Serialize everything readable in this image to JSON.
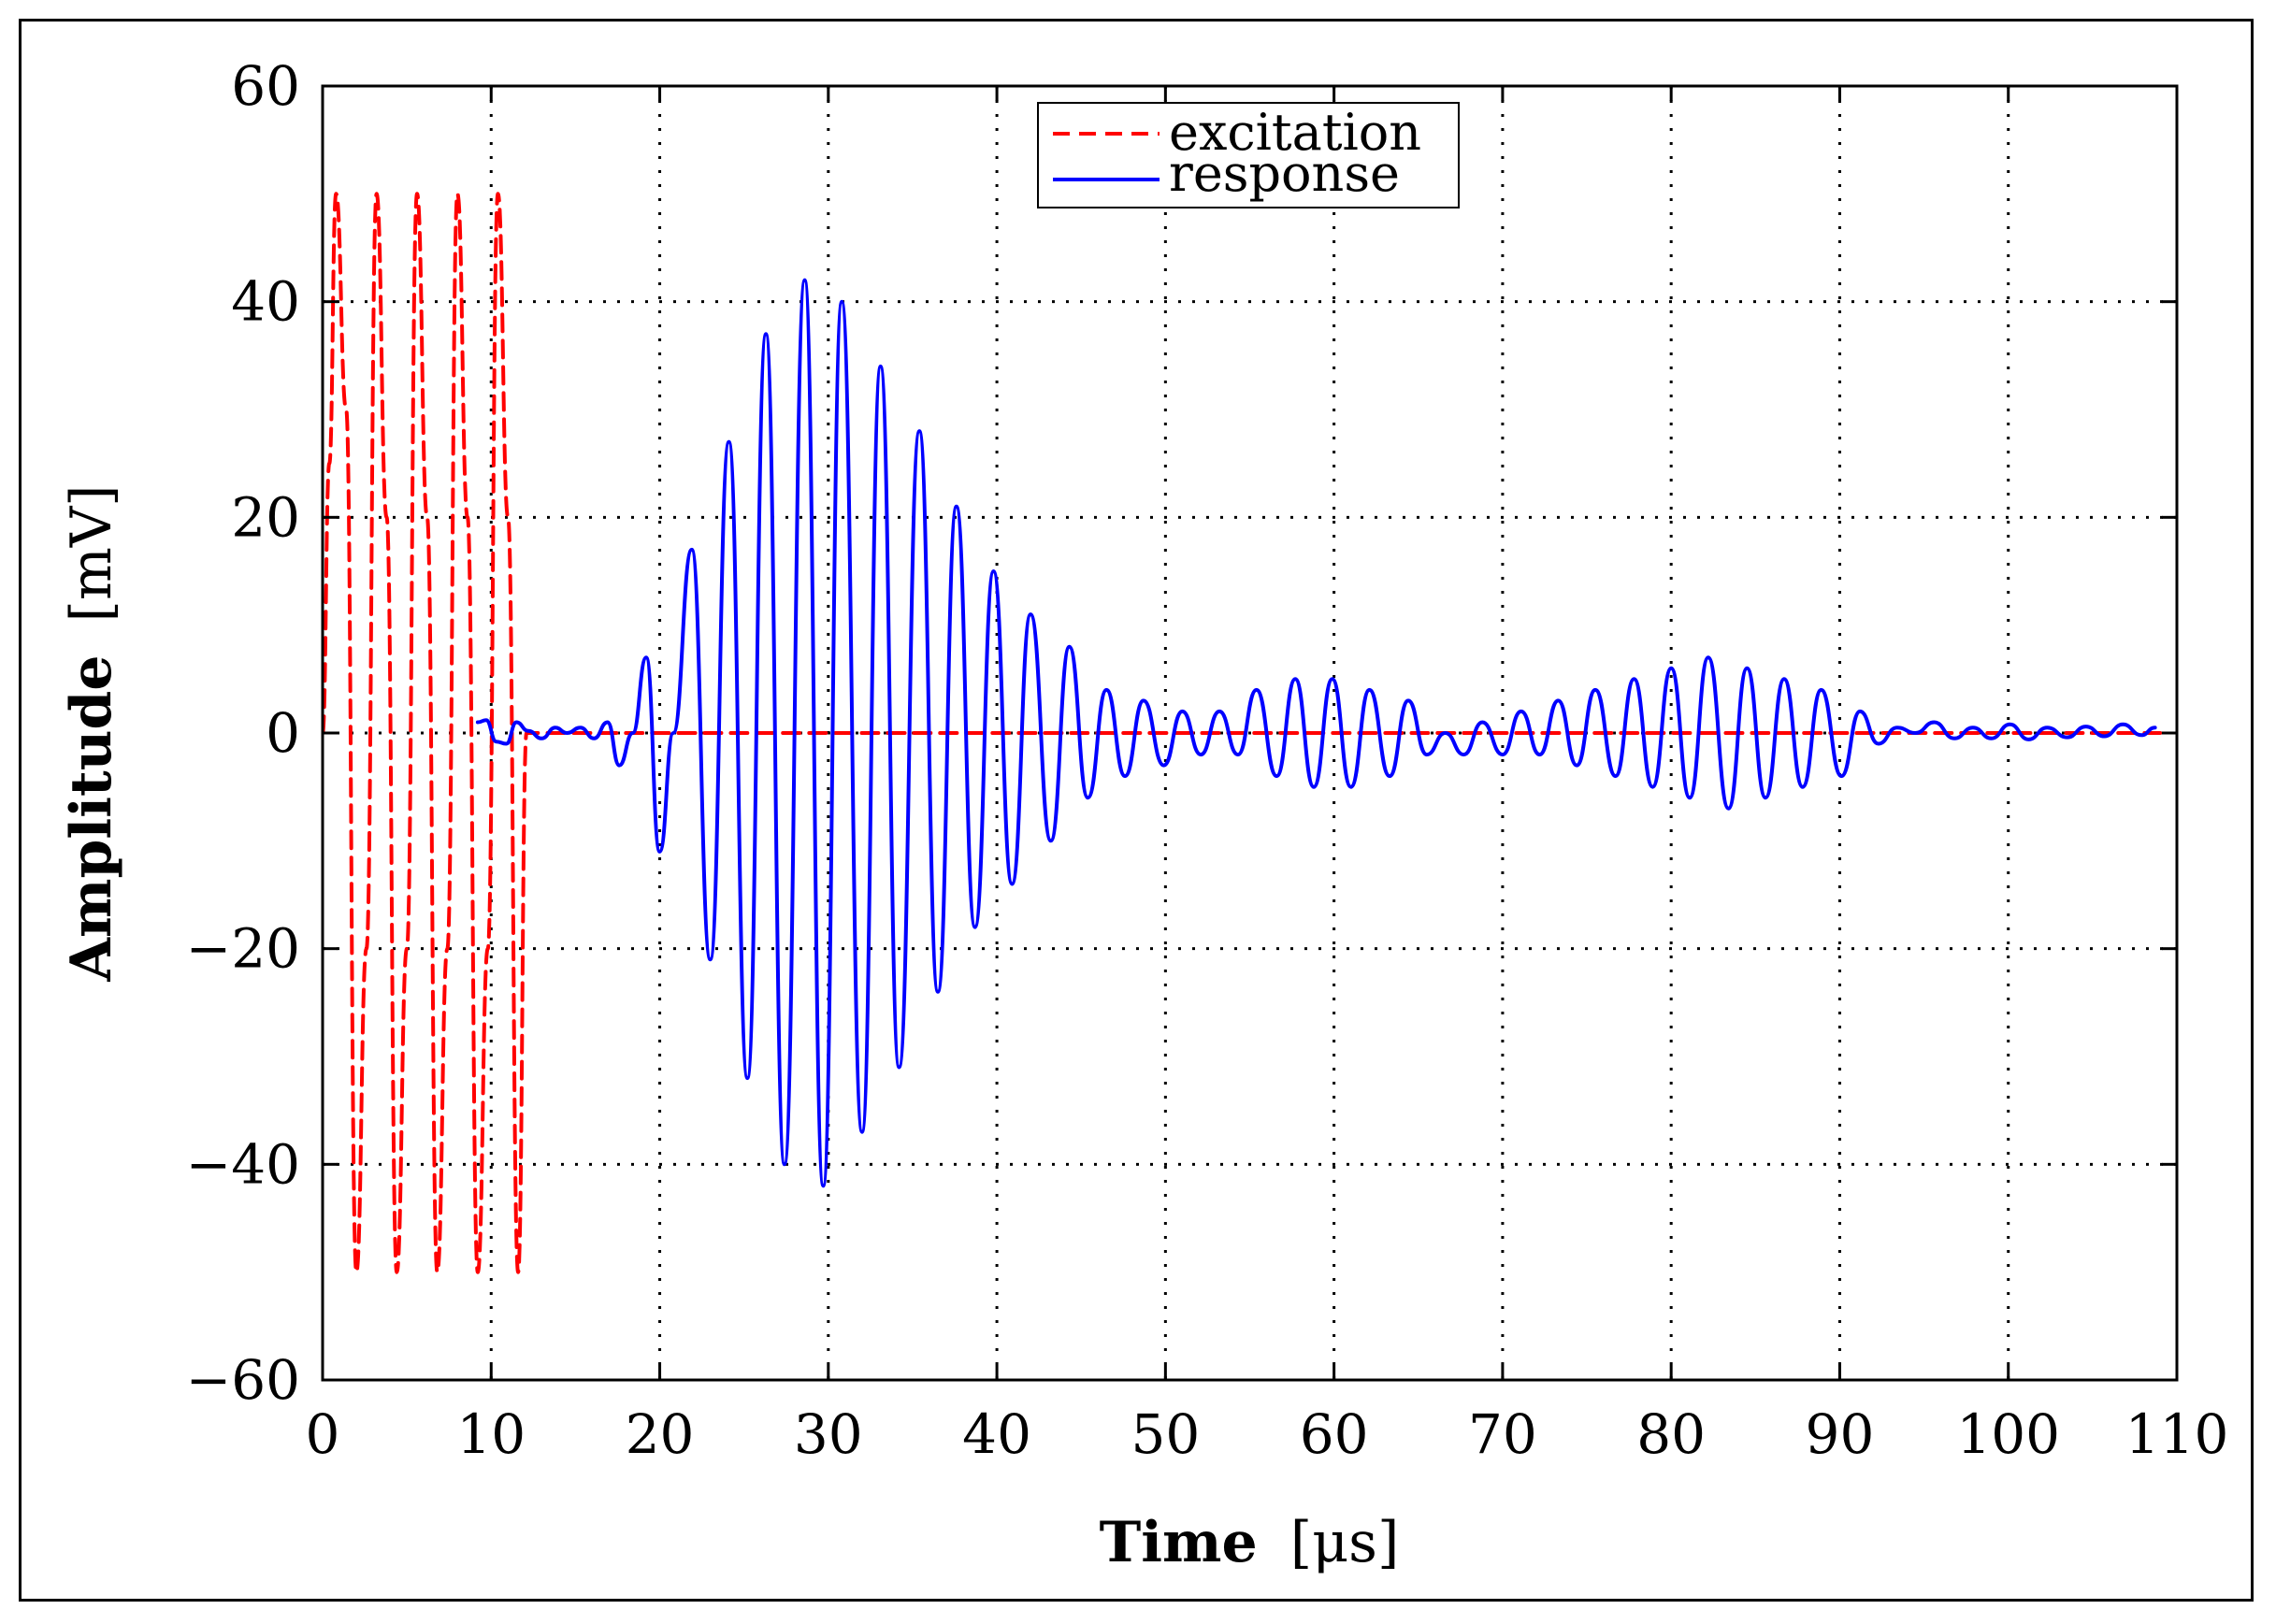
{
  "chart_data": {
    "type": "line",
    "title": "",
    "xlabel": {
      "main": "Time",
      "unit": "[μs]"
    },
    "ylabel": {
      "main": "Amplitude",
      "unit": "[mV]"
    },
    "xlim": [
      0,
      110
    ],
    "ylim": [
      -60,
      60
    ],
    "xticks": [
      0,
      10,
      20,
      30,
      40,
      50,
      60,
      70,
      80,
      90,
      100,
      110
    ],
    "yticks": [
      -60,
      -40,
      -20,
      0,
      20,
      40,
      60
    ],
    "ytick_labels": [
      "−60",
      "−40",
      "−20",
      "0",
      "20",
      "40",
      "60"
    ],
    "grid": "dotted",
    "legend_position": "top-center",
    "series": [
      {
        "name": "excitation",
        "style": "dashed",
        "color": "#ff0000",
        "x": [
          0.0,
          0.4,
          0.8,
          1.4,
          2.0,
          2.6,
          3.2,
          3.8,
          4.4,
          5.0,
          5.6,
          6.2,
          6.8,
          7.4,
          8.0,
          8.6,
          9.2,
          9.8,
          10.4,
          11.0,
          11.6,
          12.1,
          13.0,
          20.0,
          30.0,
          40.0,
          50.0,
          60.0,
          70.0,
          80.0,
          90.0,
          100.0,
          109.0
        ],
        "values": [
          0,
          25,
          50,
          30,
          -50,
          -20,
          50,
          20,
          -50,
          -20,
          50,
          20,
          -50,
          -20,
          50,
          20,
          -50,
          -20,
          50,
          20,
          -50,
          0,
          0,
          0,
          0,
          0,
          0,
          0,
          0,
          0,
          0,
          0,
          0
        ]
      },
      {
        "name": "response",
        "style": "solid",
        "color": "#0000ff",
        "x": [
          9.2,
          9.7,
          10.3,
          10.9,
          11.5,
          12.2,
          13.0,
          13.8,
          14.5,
          15.3,
          16.1,
          16.9,
          17.6,
          18.4,
          19.2,
          20.0,
          20.8,
          21.9,
          23.0,
          24.1,
          25.2,
          26.3,
          27.4,
          28.6,
          29.7,
          30.8,
          32.0,
          33.1,
          34.2,
          35.4,
          36.5,
          37.6,
          38.7,
          39.8,
          40.9,
          42.0,
          43.2,
          44.3,
          45.4,
          46.5,
          47.6,
          48.7,
          49.9,
          51.0,
          52.1,
          53.2,
          54.3,
          55.4,
          56.6,
          57.7,
          58.8,
          59.9,
          61.0,
          62.1,
          63.3,
          64.4,
          65.5,
          66.6,
          67.7,
          68.8,
          70.0,
          71.1,
          72.2,
          73.3,
          74.4,
          75.5,
          76.7,
          77.8,
          78.9,
          80.0,
          81.1,
          82.2,
          83.4,
          84.5,
          85.6,
          86.7,
          87.8,
          88.9,
          90.1,
          91.2,
          92.3,
          93.4,
          94.5,
          95.6,
          96.8,
          97.9,
          99.0,
          100.1,
          101.2,
          102.3,
          103.5,
          104.6,
          105.7,
          106.8,
          107.9,
          108.7
        ],
        "values": [
          1,
          1.2,
          -0.8,
          -1,
          1.0,
          0.2,
          -0.5,
          0.5,
          0,
          0.5,
          -0.5,
          1,
          -3,
          0,
          7,
          -11,
          0,
          17,
          -21,
          27,
          -32,
          37,
          -40,
          42,
          -42,
          40,
          -37,
          34,
          -31,
          28,
          -24,
          21,
          -18,
          15,
          -14,
          11,
          -10,
          8,
          -6,
          4,
          -4,
          3,
          -3,
          2,
          -2,
          2,
          -2,
          4,
          -4,
          5,
          -5,
          5,
          -5,
          4,
          -4,
          3,
          -2,
          0,
          -2,
          1,
          -2,
          2,
          -2,
          3,
          -3,
          4,
          -4,
          5,
          -5,
          6,
          -6,
          7,
          -7,
          6,
          -6,
          5,
          -5,
          4,
          -4,
          2,
          -1,
          0.5,
          0,
          1,
          -0.5,
          0.5,
          -0.5,
          0.8,
          -0.6,
          0.5,
          -0.4,
          0.6,
          -0.3,
          0.8,
          -0.2,
          0.5
        ]
      }
    ]
  }
}
